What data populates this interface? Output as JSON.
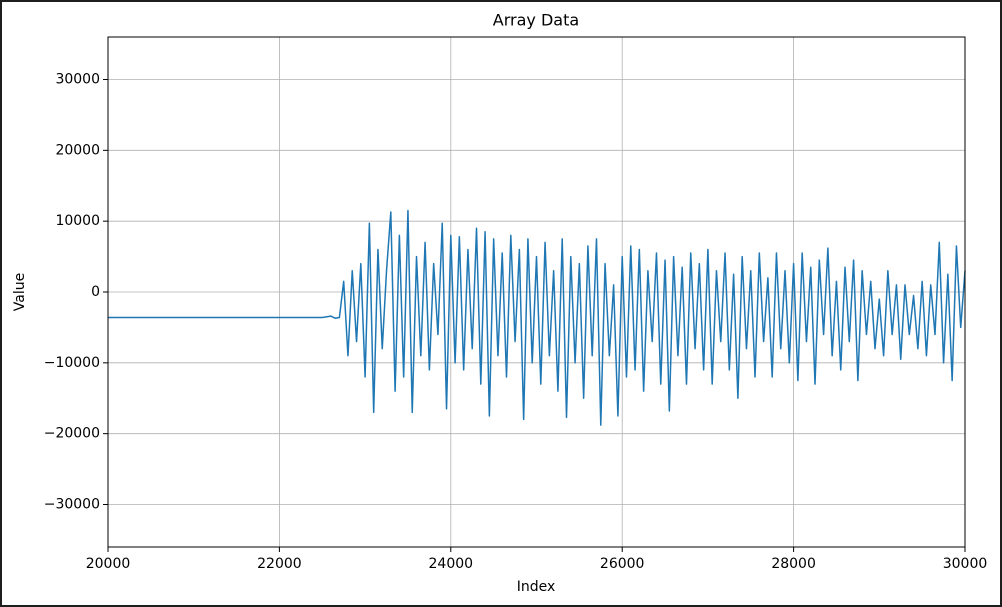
{
  "chart_data": {
    "type": "line",
    "title": "Array Data",
    "x_label": "Index",
    "y_label": "Value",
    "color": "#1f77b4",
    "grid": true,
    "xlim": [
      20000,
      30000
    ],
    "ylim": [
      -36000,
      36000
    ],
    "xticks": [
      20000,
      22000,
      24000,
      26000,
      28000,
      30000
    ],
    "yticks": [
      {
        "value": -30000,
        "label": "−30000"
      },
      {
        "value": -20000,
        "label": "−20000"
      },
      {
        "value": -10000,
        "label": "−10000"
      },
      0,
      10000,
      20000,
      30000
    ],
    "x": [
      20000,
      22500,
      22600,
      22650,
      22700,
      22750,
      22800,
      22850,
      22900,
      22950,
      23000,
      23050,
      23100,
      23150,
      23200,
      23250,
      23300,
      23350,
      23400,
      23450,
      23500,
      23550,
      23600,
      23650,
      23700,
      23750,
      23800,
      23850,
      23900,
      23950,
      24000,
      24050,
      24100,
      24150,
      24200,
      24250,
      24300,
      24350,
      24400,
      24450,
      24500,
      24550,
      24600,
      24650,
      24700,
      24750,
      24800,
      24850,
      24900,
      24950,
      25000,
      25050,
      25100,
      25150,
      25200,
      25250,
      25300,
      25350,
      25400,
      25450,
      25500,
      25550,
      25600,
      25650,
      25700,
      25750,
      25800,
      25850,
      25900,
      25950,
      26000,
      26050,
      26100,
      26150,
      26200,
      26250,
      26300,
      26350,
      26400,
      26450,
      26500,
      26550,
      26600,
      26650,
      26700,
      26750,
      26800,
      26850,
      26900,
      26950,
      27000,
      27050,
      27100,
      27150,
      27200,
      27250,
      27300,
      27350,
      27400,
      27450,
      27500,
      27550,
      27600,
      27650,
      27700,
      27750,
      27800,
      27850,
      27900,
      27950,
      28000,
      28050,
      28100,
      28150,
      28200,
      28250,
      28300,
      28350,
      28400,
      28450,
      28500,
      28550,
      28600,
      28650,
      28700,
      28750,
      28800,
      28850,
      28900,
      28950,
      29000,
      29050,
      29100,
      29150,
      29200,
      29250,
      29300,
      29350,
      29400,
      29450,
      29500,
      29550,
      29600,
      29650,
      29700,
      29750,
      29800,
      29850,
      29900,
      29950,
      30000
    ],
    "values": [
      -3600,
      -3600,
      -3400,
      -3700,
      -3600,
      1500,
      -9000,
      3000,
      -7000,
      4000,
      -12000,
      9700,
      -17000,
      6000,
      -8000,
      3000,
      11300,
      -14000,
      8000,
      -12000,
      11500,
      -17000,
      5000,
      -9000,
      7000,
      -11000,
      4000,
      -6000,
      9700,
      -16500,
      8000,
      -10000,
      7800,
      -11000,
      6000,
      -8000,
      9000,
      -13000,
      8500,
      -17500,
      7500,
      -9000,
      5500,
      -12000,
      8000,
      -7000,
      6000,
      -18000,
      7500,
      -10000,
      5000,
      -13000,
      7000,
      -9000,
      3000,
      -14000,
      7500,
      -17700,
      5000,
      -10000,
      4000,
      -15000,
      6500,
      -9000,
      7500,
      -18800,
      4000,
      -9000,
      1000,
      -17500,
      5000,
      -12000,
      6500,
      -11000,
      6000,
      -14000,
      3000,
      -7000,
      5500,
      -13000,
      4500,
      -16800,
      5000,
      -9000,
      3500,
      -13000,
      5500,
      -8000,
      4000,
      -11000,
      6000,
      -13000,
      3000,
      -7000,
      5500,
      -11000,
      2500,
      -15000,
      5000,
      -8000,
      3000,
      -12000,
      5500,
      -7000,
      2000,
      -12000,
      5500,
      -8000,
      3000,
      -10000,
      4000,
      -12500,
      5500,
      -7000,
      3500,
      -13000,
      4500,
      -6000,
      6200,
      -9000,
      1500,
      -11000,
      3500,
      -7000,
      4500,
      -12500,
      3000,
      -6000,
      1500,
      -8000,
      -1000,
      -9000,
      3000,
      -6000,
      1000,
      -9500,
      1000,
      -6000,
      -500,
      -8000,
      1500,
      -9000,
      1000,
      -6000,
      7000,
      -10000,
      2500,
      -12500,
      6500,
      -5000,
      3000
    ]
  }
}
